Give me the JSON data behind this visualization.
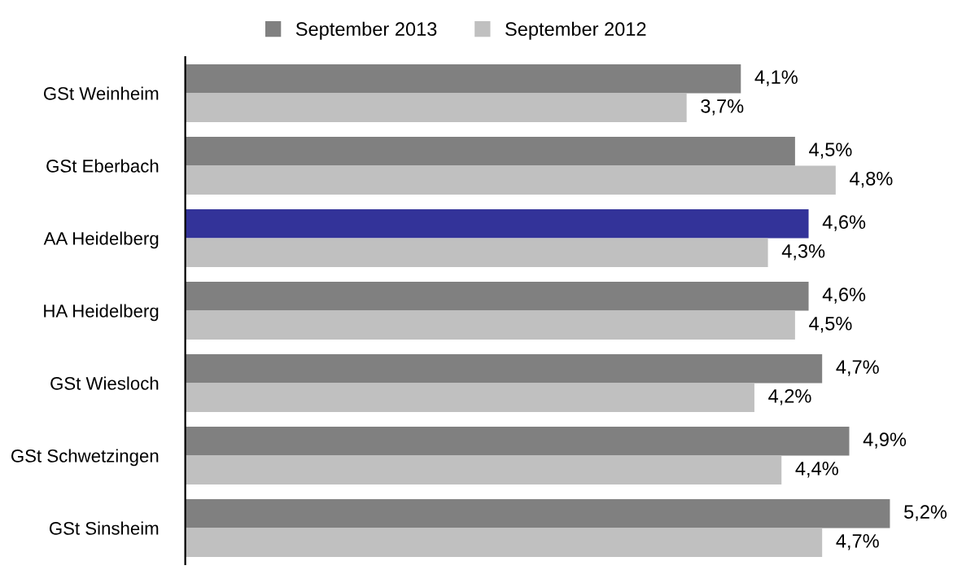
{
  "chart_data": {
    "type": "bar",
    "orientation": "horizontal",
    "categories": [
      "GSt Weinheim",
      "GSt Eberbach",
      "AA Heidelberg",
      "HA Heidelberg",
      "GSt Wiesloch",
      "GSt Schwetzingen",
      "GSt Sinsheim"
    ],
    "series": [
      {
        "name": "September 2013",
        "color": "#808080",
        "colors": [
          "#808080",
          "#808080",
          "#333399",
          "#808080",
          "#808080",
          "#808080",
          "#808080"
        ],
        "values": [
          4.1,
          4.5,
          4.6,
          4.6,
          4.7,
          4.9,
          5.2
        ],
        "value_labels": [
          "4,1%",
          "4,5%",
          "4,6%",
          "4,6%",
          "4,7%",
          "4,9%",
          "5,2%"
        ]
      },
      {
        "name": "September 2012",
        "color": "#c0c0c0",
        "values": [
          3.7,
          4.8,
          4.3,
          4.5,
          4.2,
          4.4,
          4.7
        ],
        "value_labels": [
          "3,7%",
          "4,8%",
          "4,3%",
          "4,5%",
          "4,2%",
          "4,4%",
          "4,7%"
        ]
      }
    ],
    "tick_labels": "y",
    "grid": false,
    "legend": "top"
  }
}
